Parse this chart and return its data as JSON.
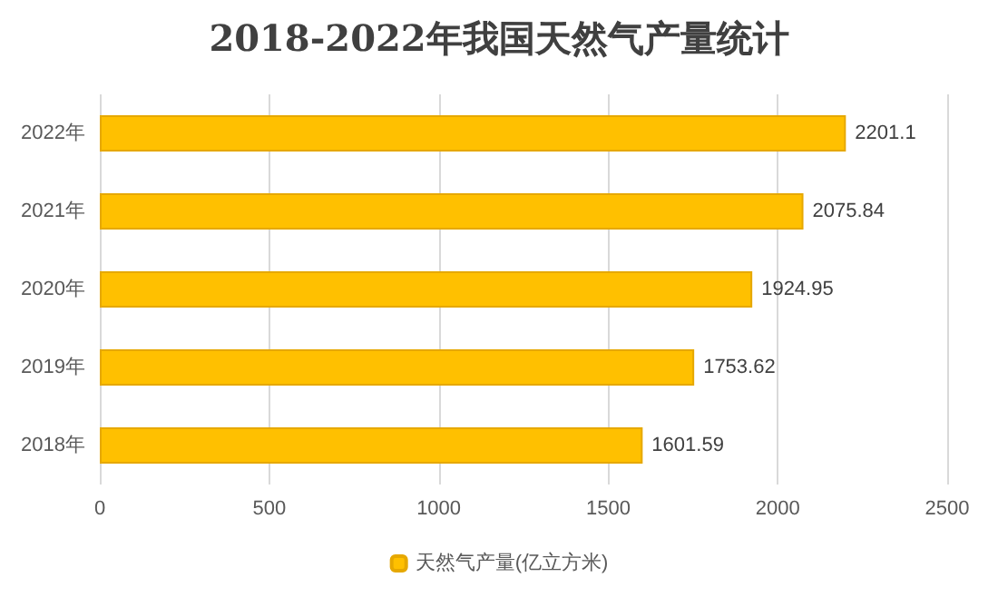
{
  "chart_data": {
    "type": "bar",
    "orientation": "horizontal",
    "title": "2018-2022年我国天然气产量统计",
    "categories": [
      "2022年",
      "2021年",
      "2020年",
      "2019年",
      "2018年"
    ],
    "series": [
      {
        "name": "天然气产量(亿立方米)",
        "color": "#ffc000",
        "values": [
          2201.1,
          2075.84,
          1924.95,
          1753.62,
          1601.59
        ]
      }
    ],
    "xlim": [
      0,
      2500
    ],
    "xticks": [
      0,
      500,
      1000,
      1500,
      2000,
      2500
    ],
    "grid": "x",
    "legend": "bottom",
    "data_labels": true
  }
}
